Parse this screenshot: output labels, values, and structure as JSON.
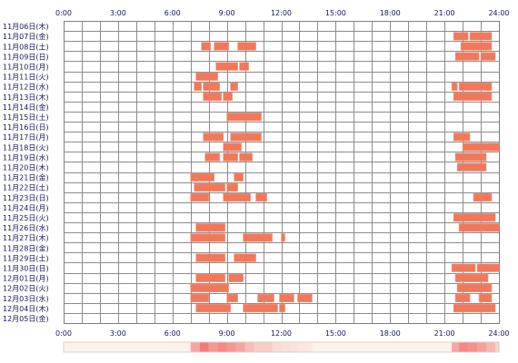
{
  "chart_data": {
    "type": "heatmap",
    "x_unit": "hour",
    "xlim": [
      0,
      24
    ],
    "tick_labels": [
      "0:00",
      "3:00",
      "6:00",
      "9:00",
      "12:00",
      "15:00",
      "18:00",
      "21:00",
      "24:00"
    ],
    "tick_hours": [
      0,
      3,
      6,
      9,
      12,
      15,
      18,
      21,
      24
    ],
    "grid": true,
    "rows": [
      {
        "label": "11月06日(木)",
        "spans": []
      },
      {
        "label": "11月07日(金)",
        "spans": [
          [
            21.5,
            22.3
          ],
          [
            22.4,
            23.6
          ]
        ]
      },
      {
        "label": "11月08日(土)",
        "spans": [
          [
            7.6,
            8.1
          ],
          [
            8.3,
            9.1
          ],
          [
            9.6,
            10.6
          ],
          [
            21.9,
            23.6
          ]
        ]
      },
      {
        "label": "11月09日(日)",
        "spans": [
          [
            21.6,
            22.9
          ],
          [
            23.0,
            23.8
          ]
        ]
      },
      {
        "label": "11月10日(月)",
        "spans": [
          [
            8.4,
            9.6
          ],
          [
            9.7,
            10.2
          ]
        ]
      },
      {
        "label": "11月11日(火)",
        "spans": [
          [
            7.3,
            8.5
          ]
        ]
      },
      {
        "label": "11月12日(水)",
        "spans": [
          [
            7.2,
            7.6
          ],
          [
            7.7,
            8.6
          ],
          [
            9.2,
            9.6
          ],
          [
            21.4,
            21.7
          ],
          [
            21.8,
            23.6
          ]
        ]
      },
      {
        "label": "11月13日(木)",
        "spans": [
          [
            7.7,
            8.7
          ],
          [
            8.8,
            9.3
          ],
          [
            21.5,
            23.6
          ]
        ]
      },
      {
        "label": "11月14日(金)",
        "spans": []
      },
      {
        "label": "11月15日(土)",
        "spans": [
          [
            9.0,
            10.9
          ]
        ]
      },
      {
        "label": "11月16日(日)",
        "spans": []
      },
      {
        "label": "11月17日(月)",
        "spans": [
          [
            7.7,
            8.8
          ],
          [
            9.2,
            10.9
          ],
          [
            21.5,
            22.4
          ]
        ]
      },
      {
        "label": "11月18日(火)",
        "spans": [
          [
            8.8,
            9.8
          ],
          [
            22.0,
            24.0
          ]
        ]
      },
      {
        "label": "11月19日(水)",
        "spans": [
          [
            7.8,
            8.6
          ],
          [
            8.8,
            9.6
          ],
          [
            9.7,
            10.4
          ],
          [
            21.6,
            23.3
          ]
        ]
      },
      {
        "label": "11月20日(木)",
        "spans": [
          [
            21.7,
            23.3
          ]
        ]
      },
      {
        "label": "11月21日(金)",
        "spans": [
          [
            7.0,
            8.3
          ],
          [
            9.4,
            9.9
          ]
        ]
      },
      {
        "label": "11月22日(土)",
        "spans": [
          [
            7.2,
            8.9
          ],
          [
            9.0,
            9.6
          ]
        ]
      },
      {
        "label": "11月23日(日)",
        "spans": [
          [
            7.0,
            8.0
          ],
          [
            8.8,
            10.3
          ],
          [
            10.6,
            11.2
          ],
          [
            22.6,
            23.6
          ]
        ]
      },
      {
        "label": "11月24日(月)",
        "spans": []
      },
      {
        "label": "11月25日(火)",
        "spans": [
          [
            21.5,
            23.8
          ]
        ]
      },
      {
        "label": "11月26日(水)",
        "spans": [
          [
            7.3,
            8.9
          ],
          [
            21.8,
            24.0
          ]
        ]
      },
      {
        "label": "11月27日(木)",
        "spans": [
          [
            7.0,
            8.9
          ],
          [
            9.9,
            11.5
          ],
          [
            12.0,
            12.2
          ]
        ]
      },
      {
        "label": "11月28日(金)",
        "spans": []
      },
      {
        "label": "11月29日(土)",
        "spans": [
          [
            7.3,
            8.9
          ],
          [
            9.4,
            10.6
          ]
        ]
      },
      {
        "label": "11月30日(日)",
        "spans": [
          [
            21.4,
            22.7
          ],
          [
            22.8,
            24.0
          ]
        ]
      },
      {
        "label": "12月01日(月)",
        "spans": [
          [
            7.3,
            8.9
          ],
          [
            9.1,
            9.9
          ],
          [
            21.6,
            23.4
          ]
        ]
      },
      {
        "label": "12月02日(火)",
        "spans": [
          [
            7.0,
            9.1
          ],
          [
            21.7,
            23.6
          ]
        ]
      },
      {
        "label": "12月03日(水)",
        "spans": [
          [
            7.0,
            8.0
          ],
          [
            9.0,
            9.6
          ],
          [
            10.7,
            11.6
          ],
          [
            11.9,
            12.7
          ],
          [
            12.9,
            13.7
          ],
          [
            21.6,
            22.4
          ],
          [
            22.9,
            23.6
          ]
        ]
      },
      {
        "label": "12月04日(木)",
        "spans": [
          [
            7.3,
            9.2
          ],
          [
            9.9,
            11.8
          ],
          [
            11.9,
            12.2
          ],
          [
            21.5,
            23.8
          ]
        ]
      },
      {
        "label": "12月05日(金)",
        "spans": []
      }
    ],
    "density_bar": [
      {
        "from": 7.0,
        "to": 7.5,
        "level": 0.5
      },
      {
        "from": 7.5,
        "to": 8.0,
        "level": 0.8
      },
      {
        "from": 8.0,
        "to": 8.5,
        "level": 0.6
      },
      {
        "from": 8.5,
        "to": 9.0,
        "level": 0.7
      },
      {
        "from": 9.0,
        "to": 9.5,
        "level": 0.6
      },
      {
        "from": 9.5,
        "to": 10.0,
        "level": 0.5
      },
      {
        "from": 10.0,
        "to": 10.5,
        "level": 0.35
      },
      {
        "from": 10.5,
        "to": 11.0,
        "level": 0.25
      },
      {
        "from": 11.0,
        "to": 11.5,
        "level": 0.25
      },
      {
        "from": 11.5,
        "to": 12.0,
        "level": 0.15
      },
      {
        "from": 12.0,
        "to": 12.5,
        "level": 0.12
      },
      {
        "from": 12.5,
        "to": 13.0,
        "level": 0.1
      },
      {
        "from": 13.0,
        "to": 13.7,
        "level": 0.08
      },
      {
        "from": 21.4,
        "to": 21.8,
        "level": 0.5
      },
      {
        "from": 21.8,
        "to": 22.3,
        "level": 0.7
      },
      {
        "from": 22.3,
        "to": 22.8,
        "level": 0.65
      },
      {
        "from": 22.8,
        "to": 23.3,
        "level": 0.55
      },
      {
        "from": 23.3,
        "to": 23.8,
        "level": 0.4
      },
      {
        "from": 23.8,
        "to": 24.0,
        "level": 0.2
      }
    ]
  },
  "colors": {
    "bar_fill": "#f1785a",
    "bar_stroke": "#f19a84",
    "grid": "#8c8c8c",
    "frame": "#7f7f7f",
    "label": "#17175c",
    "density_base": "#fdf3ea",
    "density_hot": "#f05a5a"
  }
}
